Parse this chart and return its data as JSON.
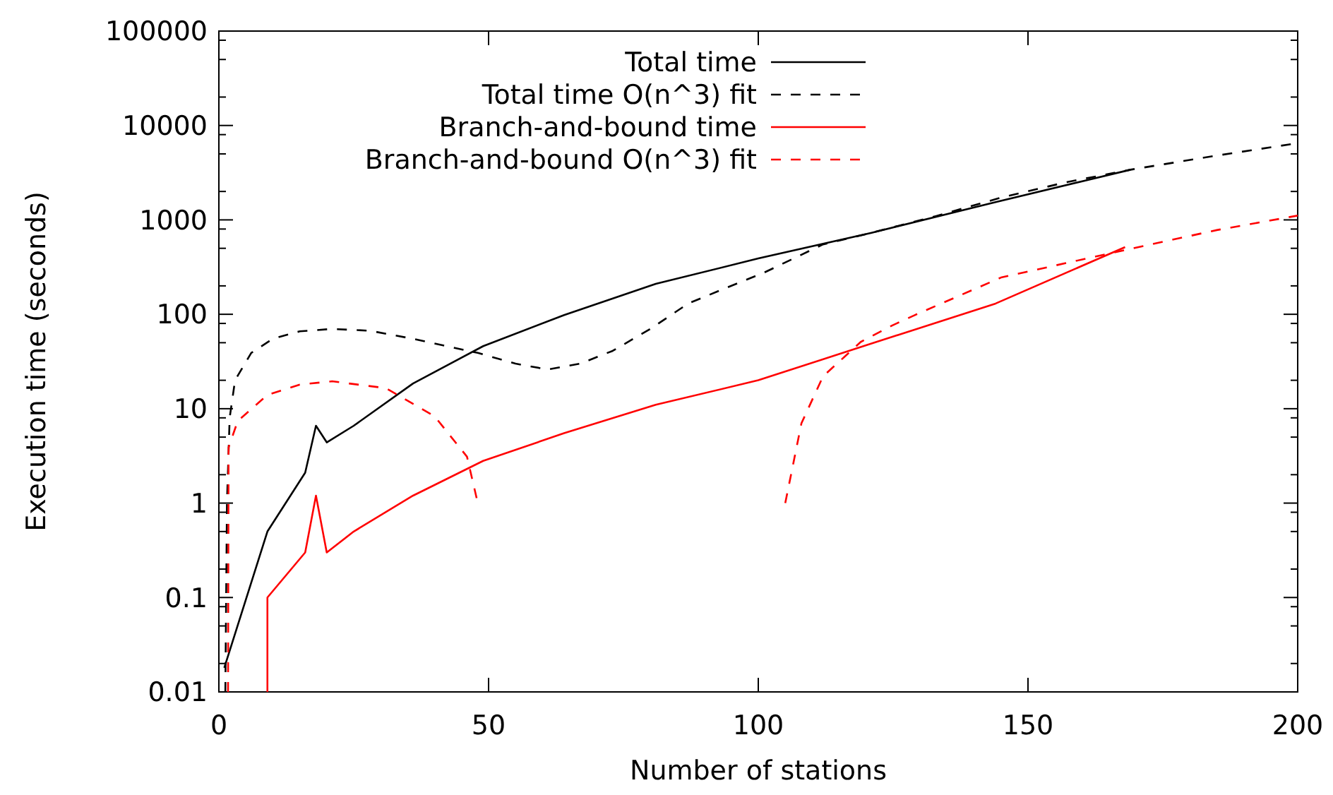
{
  "chart_data": {
    "type": "line",
    "xlabel": "Number of stations",
    "ylabel": "Execution time (seconds)",
    "xlim": [
      0,
      200
    ],
    "xticks": [
      0,
      50,
      100,
      150,
      200
    ],
    "ylim": [
      0.01,
      100000
    ],
    "log": "y",
    "yticks": [
      0.01,
      {
        "value": 0.02,
        "label": null
      },
      {
        "value": 0.05,
        "label": null
      },
      {
        "value": 0.08,
        "label": null
      },
      0.1,
      {
        "value": 0.2,
        "label": null
      },
      {
        "value": 0.5,
        "label": null
      },
      {
        "value": 0.8,
        "label": null
      },
      1,
      {
        "value": 2,
        "label": null
      },
      {
        "value": 5,
        "label": null
      },
      {
        "value": 8,
        "label": null
      },
      10,
      {
        "value": 20,
        "label": null
      },
      {
        "value": 50,
        "label": null
      },
      {
        "value": 80,
        "label": null
      },
      100,
      {
        "value": 200,
        "label": null
      },
      {
        "value": 500,
        "label": null
      },
      {
        "value": 800,
        "label": null
      },
      1000,
      {
        "value": 2000,
        "label": null
      },
      {
        "value": 5000,
        "label": null
      },
      {
        "value": 8000,
        "label": null
      },
      10000,
      {
        "value": 20000,
        "label": null
      },
      {
        "value": 50000,
        "label": null
      },
      {
        "value": 80000,
        "label": null
      },
      100000
    ],
    "grid": false,
    "legend": "top",
    "series": [
      {
        "name": "Total time",
        "color": "#000000",
        "line_style": "solid",
        "x": [
          1,
          9,
          16,
          18,
          20,
          25,
          36,
          49,
          64,
          81,
          100,
          121,
          144,
          169
        ],
        "values": [
          0.018,
          0.5,
          2.1,
          6.6,
          4.4,
          6.6,
          18.5,
          46,
          98,
          210,
          390,
          730,
          1540,
          3400
        ]
      },
      {
        "name": "Total time O(n^3) fit",
        "color": "#000000",
        "line_style": "dashed",
        "x": [
          1.2,
          1.5,
          2,
          3,
          6,
          10,
          15,
          21,
          28,
          36,
          48,
          55,
          61,
          67,
          73,
          80,
          87,
          94,
          101,
          112,
          121,
          133,
          145,
          157,
          169,
          185,
          200
        ],
        "values": [
          0.01,
          1,
          8,
          20,
          39,
          55,
          66,
          70,
          67,
          55,
          39,
          30,
          26,
          30,
          41,
          70,
          130,
          190,
          275,
          550,
          730,
          1100,
          1720,
          2500,
          3400,
          4800,
          6500
        ]
      },
      {
        "name": "Branch-and-bound time",
        "color": "#ff0000",
        "line_style": "solid",
        "x": [
          9,
          9,
          16,
          18,
          20,
          25,
          36,
          49,
          64,
          81,
          100,
          121,
          144,
          168
        ],
        "values": [
          0.01,
          0.1,
          0.3,
          1.2,
          0.3,
          0.5,
          1.2,
          2.8,
          5.5,
          11,
          20,
          49,
          130,
          515
        ]
      },
      {
        "name": "Branch-and-bound O(n^3) fit",
        "color": "#ff0000",
        "line_style": "dashed",
        "x": [
          1.7,
          1.8,
          3.5,
          9,
          15,
          21,
          31,
          40,
          46,
          48,
          77,
          105,
          108,
          112,
          119,
          125,
          129,
          145,
          165,
          185,
          200
        ],
        "values": [
          0.01,
          3.9,
          7.4,
          14,
          18,
          19.5,
          16.5,
          8.3,
          3.1,
          1.0,
          null,
          1.0,
          7,
          22,
          51,
          77,
          98,
          245,
          440,
          780,
          1110
        ]
      }
    ]
  }
}
